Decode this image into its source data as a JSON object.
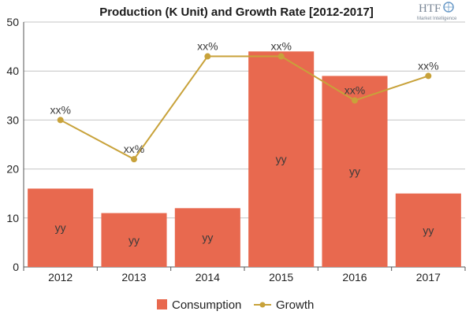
{
  "logo": {
    "text": "HTF",
    "subtext": "Market Intelligence"
  },
  "chart_data": {
    "type": "bar",
    "title": "Production (K Unit) and Growth Rate [2012-2017]",
    "xlabel": "",
    "ylabel": "",
    "categories": [
      "2012",
      "2013",
      "2014",
      "2015",
      "2016",
      "2017"
    ],
    "ylim": [
      0,
      50
    ],
    "yticks": [
      0,
      10,
      20,
      30,
      40,
      50
    ],
    "grid": true,
    "legend_position": "bottom-center",
    "series": [
      {
        "name": "Consumption",
        "type": "bar",
        "color": "#e8694f",
        "values": [
          16,
          11,
          12,
          44,
          39,
          15
        ],
        "data_labels": [
          "yy",
          "yy",
          "yy",
          "yy",
          "yy",
          "yy"
        ]
      },
      {
        "name": "Growth",
        "type": "line",
        "color": "#c8a23a",
        "values": [
          30,
          22,
          43,
          43,
          34,
          39
        ],
        "data_labels": [
          "xx%",
          "xx%",
          "xx%",
          "xx%",
          "xx%",
          "xx%"
        ]
      }
    ]
  }
}
